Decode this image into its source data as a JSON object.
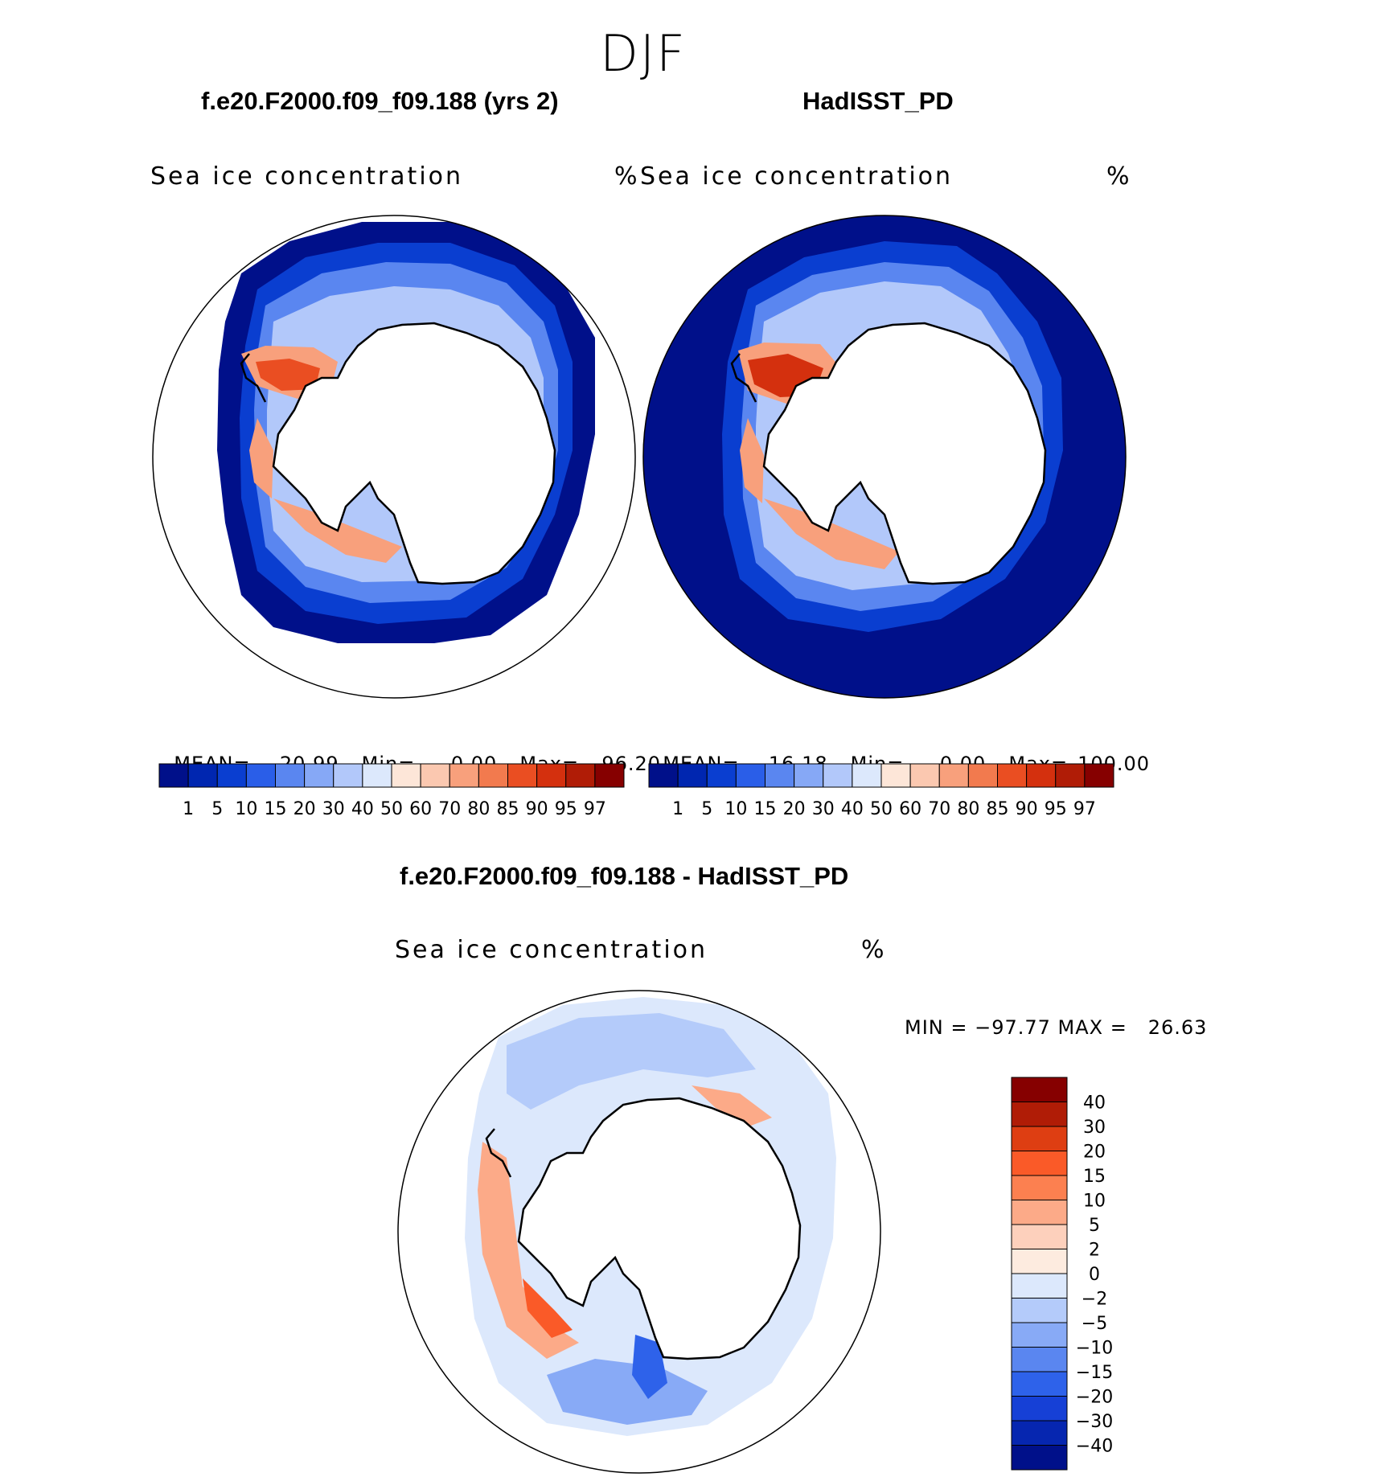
{
  "season": "DJF",
  "panels": [
    {
      "id": "model",
      "title": "f.e20.F2000.f09_f09.188 (yrs 2)",
      "variable": "Sea ice concentration",
      "units": "%",
      "stats": {
        "mean_label": "MEAN=",
        "mean": "20.99",
        "min_label": "Min=",
        "min": "0.00",
        "max_label": "Max=",
        "max": "96.20"
      }
    },
    {
      "id": "obs",
      "title": "HadISST_PD",
      "variable": "Sea ice concentration",
      "units": "%",
      "stats": {
        "mean_label": "MEAN=",
        "mean": "16.18",
        "min_label": "Min=",
        "min": "0.00",
        "max_label": "Max=",
        "max": "100.00"
      }
    }
  ],
  "abs_colorbar": {
    "colors": [
      "#00108a",
      "#0026b0",
      "#0a3ed0",
      "#2a5ee8",
      "#5a86f0",
      "#86a8f6",
      "#b2c8fa",
      "#dce8fc",
      "#fde6d8",
      "#fbc8b0",
      "#f8a07c",
      "#f27a4e",
      "#ea4e22",
      "#d4300e",
      "#b01c06",
      "#860000"
    ],
    "labels": [
      "1",
      "5",
      "10",
      "15",
      "20",
      "30",
      "40",
      "50",
      "60",
      "70",
      "80",
      "85",
      "90",
      "95",
      "97"
    ]
  },
  "diff": {
    "title": "f.e20.F2000.f09_f09.188 - HadISST_PD",
    "variable": "Sea ice concentration",
    "units": "%",
    "minmax": "MIN = −97.77 MAX =   26.63",
    "colorbar": {
      "colors": [
        "#860000",
        "#b01c06",
        "#de3e12",
        "#fa5a28",
        "#fc8050",
        "#fcaa88",
        "#fdd0bc",
        "#fdebdf",
        "#dce8fc",
        "#b4cbfa",
        "#88aaf6",
        "#5a86f0",
        "#2e62ea",
        "#1640d6",
        "#0626b0",
        "#00108a"
      ],
      "labels": [
        "40",
        "30",
        "20",
        "15",
        "10",
        "5",
        "2",
        "0",
        "−2",
        "−5",
        "−10",
        "−15",
        "−20",
        "−30",
        "−40"
      ]
    }
  }
}
